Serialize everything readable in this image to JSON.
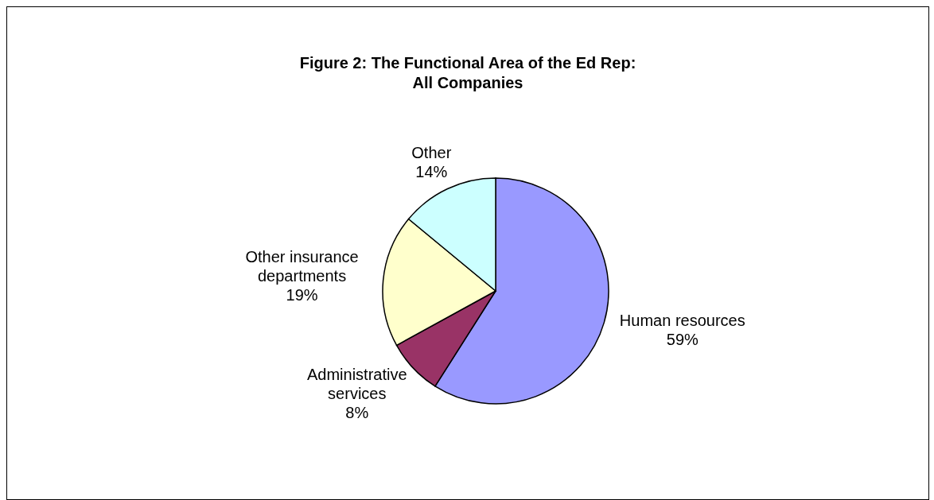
{
  "chart_data": {
    "type": "pie",
    "title": "Figure 2: The Functional Area of the Ed Rep:\nAll Companies",
    "categories": [
      "Human resources",
      "Administrative services",
      "Other insurance departments",
      "Other"
    ],
    "values": [
      59,
      8,
      19,
      14
    ],
    "colors": [
      "#9999ff",
      "#993366",
      "#ffffcc",
      "#ccffff"
    ],
    "value_labels": [
      "59%",
      "8%",
      "19%",
      "14%"
    ]
  }
}
